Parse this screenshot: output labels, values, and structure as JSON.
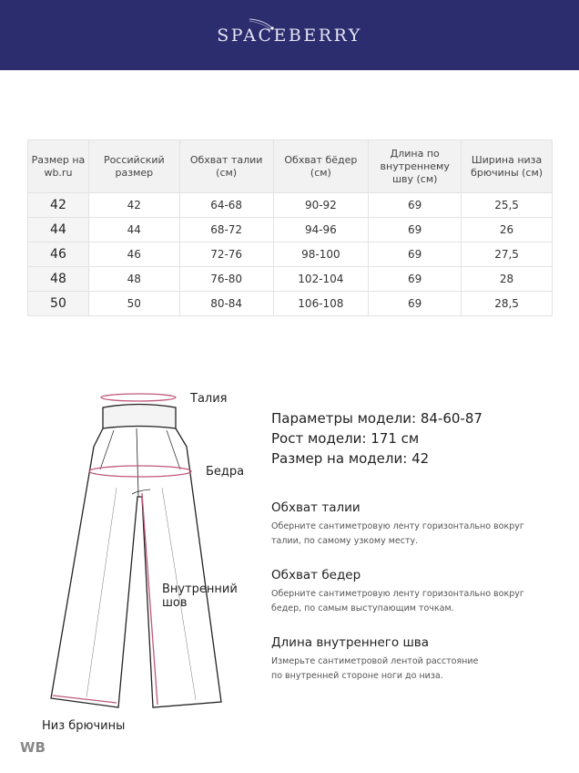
{
  "brand": {
    "logo": "SPACEBERRY",
    "color": "#2c2d6e"
  },
  "table": {
    "headers": [
      "Размер на wb.ru",
      "Российский размер",
      "Обхват талии (см)",
      "Обхват бёдер (см)",
      "Длина по внутреннему шву (см)",
      "Ширина низа брючины (см)"
    ],
    "rows": [
      [
        "42",
        "42",
        "64-68",
        "90-92",
        "69",
        "25,5"
      ],
      [
        "44",
        "44",
        "68-72",
        "94-96",
        "69",
        "26"
      ],
      [
        "46",
        "46",
        "72-76",
        "98-100",
        "69",
        "27,5"
      ],
      [
        "48",
        "48",
        "76-80",
        "102-104",
        "69",
        "28"
      ],
      [
        "50",
        "50",
        "80-84",
        "106-108",
        "69",
        "28,5"
      ]
    ]
  },
  "diagram": {
    "waist": "Талия",
    "hips": "Бедра",
    "inseam_1": "Внутренний",
    "inseam_2": "шов",
    "hem": "Низ брючины",
    "accent": "#c0587a"
  },
  "model": {
    "params": "Параметры модели: 84-60-87",
    "height": "Рост модели: 171 см",
    "size": "Размер на модели: 42"
  },
  "sections": [
    {
      "title": "Обхват талии",
      "line1": "Оберните сантиметровую ленту горизонтально вокруг",
      "line2": "талии, по самому узкому месту."
    },
    {
      "title": "Обхват бедер",
      "line1": "Оберните сантиметровую ленту горизонтально вокруг",
      "line2": "бедер, по самым выступающим точкам."
    },
    {
      "title": "Длина внутреннего шва",
      "line1": "Измерьте сантиметровой лентой расстояние",
      "line2": "по внутренней стороне ноги до низа."
    }
  ],
  "watermark": "WB"
}
